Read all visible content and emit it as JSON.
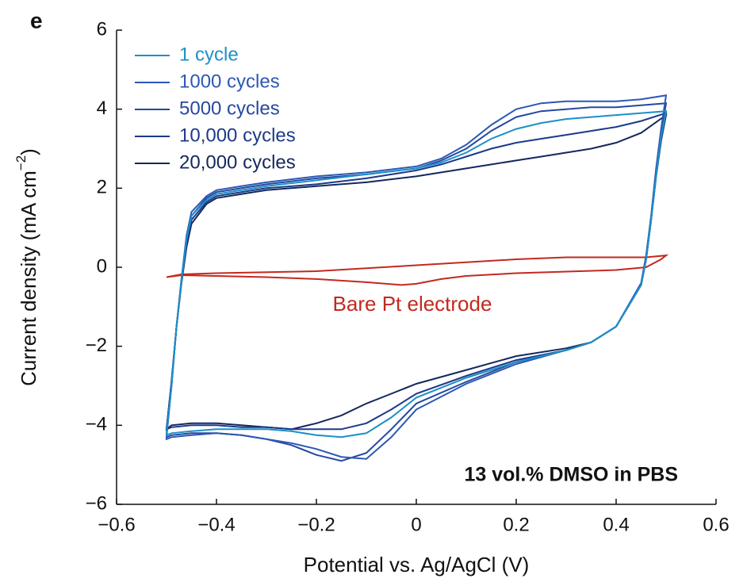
{
  "chart_data": {
    "type": "line",
    "panel_label": "e",
    "xlabel": "Potential vs. Ag/AgCl (V)",
    "ylabel": {
      "text": "Current density (mA cm",
      "sup": "−2",
      "close": ")"
    },
    "xlim": [
      -0.6,
      0.6
    ],
    "ylim": [
      -6,
      6
    ],
    "xticks": [
      {
        "value": -0.6,
        "label": "−0.6"
      },
      {
        "value": -0.4,
        "label": "−0.4"
      },
      {
        "value": -0.2,
        "label": "−0.2"
      },
      0,
      0.2,
      0.4,
      0.6
    ],
    "yticks": [
      {
        "value": -6,
        "label": "−6"
      },
      {
        "value": -4,
        "label": "−4"
      },
      {
        "value": -2,
        "label": "−2"
      },
      0,
      2,
      4,
      6
    ],
    "annotations": [
      {
        "text": "13 vol.% DMSO in PBS",
        "bold": true
      }
    ],
    "legend": "upper left",
    "series": [
      {
        "name": "1 cycle",
        "color": "#1b90c8",
        "x": [
          -0.5,
          -0.49,
          -0.48,
          -0.47,
          -0.46,
          -0.45,
          -0.42,
          -0.4,
          -0.35,
          -0.3,
          -0.2,
          -0.1,
          0,
          0.05,
          0.1,
          0.15,
          0.2,
          0.25,
          0.3,
          0.35,
          0.4,
          0.45,
          0.5,
          0.49,
          0.48,
          0.47,
          0.46,
          0.45,
          0.4,
          0.35,
          0.3,
          0.2,
          0.1,
          0,
          -0.05,
          -0.1,
          -0.15,
          -0.2,
          -0.25,
          -0.3,
          -0.35,
          -0.4,
          -0.45,
          -0.49,
          -0.5
        ],
        "values": [
          -4.2,
          -3.0,
          -1.5,
          -0.35,
          0.7,
          1.3,
          1.7,
          1.85,
          1.95,
          2.05,
          2.2,
          2.35,
          2.5,
          2.65,
          2.9,
          3.25,
          3.5,
          3.65,
          3.75,
          3.8,
          3.85,
          3.9,
          3.95,
          3.3,
          2.3,
          1.2,
          0.2,
          -0.45,
          -1.5,
          -1.9,
          -2.1,
          -2.4,
          -2.8,
          -3.3,
          -3.8,
          -4.2,
          -4.3,
          -4.25,
          -4.15,
          -4.1,
          -4.1,
          -4.1,
          -4.15,
          -4.2,
          -4.25
        ]
      },
      {
        "name": "1000 cycles",
        "color": "#2c58b4",
        "x": [
          -0.5,
          -0.49,
          -0.48,
          -0.47,
          -0.46,
          -0.45,
          -0.42,
          -0.4,
          -0.35,
          -0.3,
          -0.2,
          -0.1,
          0,
          0.05,
          0.1,
          0.15,
          0.2,
          0.25,
          0.3,
          0.35,
          0.4,
          0.45,
          0.5,
          0.49,
          0.48,
          0.47,
          0.46,
          0.45,
          0.4,
          0.35,
          0.3,
          0.2,
          0.1,
          0,
          -0.05,
          -0.1,
          -0.15,
          -0.2,
          -0.25,
          -0.3,
          -0.35,
          -0.4,
          -0.45,
          -0.49,
          -0.5
        ],
        "values": [
          -4.3,
          -3.0,
          -1.5,
          -0.3,
          0.8,
          1.4,
          1.8,
          1.95,
          2.05,
          2.15,
          2.3,
          2.4,
          2.55,
          2.75,
          3.1,
          3.6,
          4.0,
          4.15,
          4.2,
          4.2,
          4.2,
          4.25,
          4.35,
          3.5,
          2.5,
          1.3,
          0.3,
          -0.4,
          -1.5,
          -1.9,
          -2.1,
          -2.45,
          -2.95,
          -3.6,
          -4.3,
          -4.85,
          -4.8,
          -4.6,
          -4.45,
          -4.35,
          -4.25,
          -4.2,
          -4.25,
          -4.3,
          -4.35
        ]
      },
      {
        "name": "5000 cycles",
        "color": "#2548a0",
        "x": [
          -0.5,
          -0.49,
          -0.48,
          -0.47,
          -0.46,
          -0.45,
          -0.42,
          -0.4,
          -0.35,
          -0.3,
          -0.2,
          -0.1,
          0,
          0.05,
          0.1,
          0.15,
          0.2,
          0.25,
          0.3,
          0.35,
          0.4,
          0.45,
          0.5,
          0.49,
          0.48,
          0.47,
          0.46,
          0.45,
          0.4,
          0.35,
          0.3,
          0.2,
          0.1,
          0,
          -0.05,
          -0.1,
          -0.15,
          -0.2,
          -0.25,
          -0.3,
          -0.35,
          -0.4,
          -0.45,
          -0.49,
          -0.5
        ],
        "values": [
          -4.25,
          -3.0,
          -1.5,
          -0.3,
          0.7,
          1.3,
          1.75,
          1.9,
          2.0,
          2.1,
          2.25,
          2.35,
          2.5,
          2.7,
          3.0,
          3.45,
          3.8,
          3.95,
          4.0,
          4.05,
          4.05,
          4.1,
          4.15,
          3.4,
          2.4,
          1.2,
          0.2,
          -0.45,
          -1.5,
          -1.9,
          -2.1,
          -2.4,
          -2.9,
          -3.45,
          -4.1,
          -4.7,
          -4.9,
          -4.75,
          -4.5,
          -4.35,
          -4.25,
          -4.2,
          -4.2,
          -4.25,
          -4.3
        ]
      },
      {
        "name": "10,000 cycles",
        "color": "#1c3a88",
        "x": [
          -0.5,
          -0.49,
          -0.48,
          -0.47,
          -0.46,
          -0.45,
          -0.42,
          -0.4,
          -0.35,
          -0.3,
          -0.2,
          -0.1,
          0,
          0.05,
          0.1,
          0.15,
          0.2,
          0.25,
          0.3,
          0.35,
          0.4,
          0.45,
          0.5,
          0.49,
          0.48,
          0.47,
          0.46,
          0.45,
          0.4,
          0.35,
          0.3,
          0.2,
          0.1,
          0,
          -0.05,
          -0.1,
          -0.15,
          -0.2,
          -0.25,
          -0.3,
          -0.35,
          -0.4,
          -0.45,
          -0.49,
          -0.5
        ],
        "values": [
          -4.1,
          -2.9,
          -1.5,
          -0.35,
          0.6,
          1.2,
          1.65,
          1.8,
          1.9,
          2.0,
          2.1,
          2.25,
          2.45,
          2.6,
          2.8,
          3.0,
          3.15,
          3.25,
          3.35,
          3.45,
          3.55,
          3.7,
          3.9,
          3.2,
          2.3,
          1.2,
          0.2,
          -0.45,
          -1.5,
          -1.9,
          -2.1,
          -2.35,
          -2.75,
          -3.2,
          -3.6,
          -3.95,
          -4.1,
          -4.1,
          -4.1,
          -4.05,
          -4.05,
          -4.0,
          -4.0,
          -4.05,
          -4.1
        ]
      },
      {
        "name": "20,000 cycles",
        "color": "#14285e",
        "x": [
          -0.5,
          -0.49,
          -0.48,
          -0.47,
          -0.46,
          -0.45,
          -0.42,
          -0.4,
          -0.35,
          -0.3,
          -0.2,
          -0.1,
          0,
          0.05,
          0.1,
          0.15,
          0.2,
          0.25,
          0.3,
          0.35,
          0.4,
          0.45,
          0.5,
          0.49,
          0.48,
          0.47,
          0.46,
          0.45,
          0.4,
          0.35,
          0.3,
          0.2,
          0.1,
          0,
          -0.05,
          -0.1,
          -0.15,
          -0.2,
          -0.25,
          -0.3,
          -0.35,
          -0.4,
          -0.45,
          -0.49,
          -0.5
        ],
        "values": [
          -4.1,
          -2.9,
          -1.5,
          -0.4,
          0.5,
          1.1,
          1.6,
          1.75,
          1.85,
          1.95,
          2.05,
          2.15,
          2.3,
          2.4,
          2.5,
          2.6,
          2.7,
          2.8,
          2.9,
          3.0,
          3.15,
          3.4,
          3.85,
          3.2,
          2.3,
          1.2,
          0.2,
          -0.45,
          -1.5,
          -1.9,
          -2.05,
          -2.25,
          -2.6,
          -2.95,
          -3.2,
          -3.45,
          -3.75,
          -3.95,
          -4.1,
          -4.05,
          -4.0,
          -3.95,
          -3.95,
          -4.0,
          -4.1
        ]
      },
      {
        "name": "Bare Pt electrode",
        "color": "#c3291f",
        "legend": false,
        "x": [
          -0.5,
          -0.47,
          -0.4,
          -0.2,
          0,
          0.2,
          0.3,
          0.4,
          0.46,
          0.5,
          0.49,
          0.46,
          0.4,
          0.2,
          0.1,
          0.05,
          0,
          -0.03,
          -0.1,
          -0.2,
          -0.3,
          -0.4,
          -0.47,
          -0.5
        ],
        "values": [
          -0.25,
          -0.18,
          -0.15,
          -0.1,
          0.05,
          0.2,
          0.25,
          0.25,
          0.25,
          0.3,
          0.2,
          0.0,
          -0.07,
          -0.15,
          -0.22,
          -0.3,
          -0.42,
          -0.45,
          -0.38,
          -0.3,
          -0.25,
          -0.22,
          -0.2,
          -0.25
        ]
      }
    ]
  }
}
